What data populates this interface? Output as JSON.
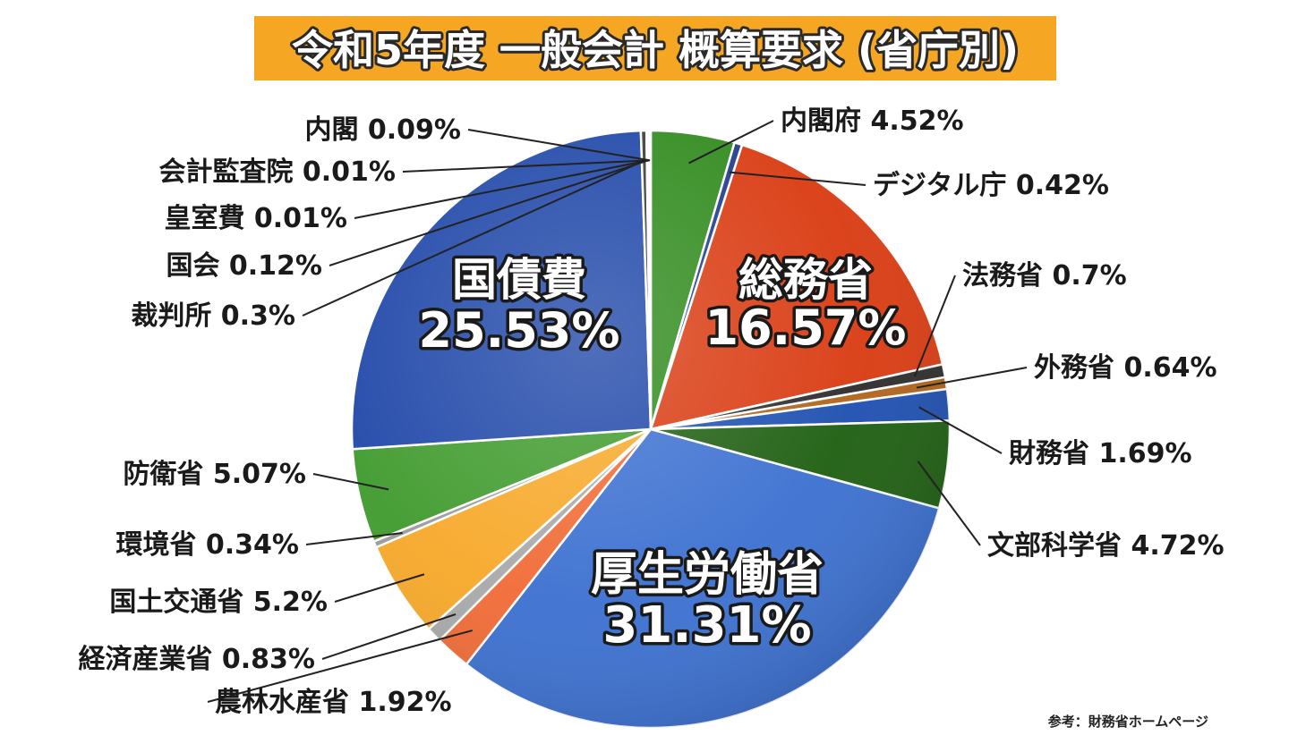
{
  "title": "令和5年度 一般会計 概算要求 (省庁別)",
  "source_note": "参考：財務省ホームページ",
  "chart_data": {
    "type": "pie",
    "title": "令和5年度 一般会計 概算要求 (省庁別)",
    "unit": "%",
    "slices": [
      {
        "label": "内閣府",
        "value": 4.52,
        "display": "内閣府 4.52%",
        "color": "#2f8a1c"
      },
      {
        "label": "デジタル庁",
        "value": 0.42,
        "display": "デジタル庁 0.42%",
        "color": "#1f3a8a"
      },
      {
        "label": "総務省",
        "value": 16.57,
        "display": "16.57%",
        "color": "#d93a10"
      },
      {
        "label": "法務省",
        "value": 0.7,
        "display": "法務省 0.7%",
        "color": "#2b2b2b"
      },
      {
        "label": "外務省",
        "value": 0.64,
        "display": "外務省 0.64%",
        "color": "#b0631a"
      },
      {
        "label": "財務省",
        "value": 1.69,
        "display": "財務省 1.69%",
        "color": "#1d4fb0"
      },
      {
        "label": "文部科学省",
        "value": 4.72,
        "display": "文部科学省 4.72%",
        "color": "#1d5e10"
      },
      {
        "label": "厚生労働省",
        "value": 31.31,
        "display": "31.31%",
        "color": "#3a6fd0"
      },
      {
        "label": "農林水産省",
        "value": 1.92,
        "display": "農林水産省 1.92%",
        "color": "#f06a35"
      },
      {
        "label": "経済産業省",
        "value": 0.83,
        "display": "経済産業省 0.83%",
        "color": "#a8a8a8"
      },
      {
        "label": "国土交通省",
        "value": 5.2,
        "display": "国土交通省 5.2%",
        "color": "#f7a828"
      },
      {
        "label": "環境省",
        "value": 0.34,
        "display": "環境省 0.34%",
        "color": "#9a9a9a"
      },
      {
        "label": "防衛省",
        "value": 5.07,
        "display": "防衛省 5.07%",
        "color": "#3f9a2c"
      },
      {
        "label": "国債費",
        "value": 25.53,
        "display": "25.53%",
        "color": "#1e46a8"
      },
      {
        "label": "裁判所",
        "value": 0.3,
        "display": "裁判所 0.3%",
        "color": "#3a3a3a"
      },
      {
        "label": "国会",
        "value": 0.12,
        "display": "国会 0.12%",
        "color": "#555555"
      },
      {
        "label": "皇室費",
        "value": 0.01,
        "display": "皇室費 0.01%",
        "color": "#777777"
      },
      {
        "label": "会計監査院",
        "value": 0.01,
        "display": "会計監査院 0.01%",
        "color": "#888888"
      },
      {
        "label": "内閣",
        "value": 0.09,
        "display": "内閣 0.09%",
        "color": "#666666"
      }
    ]
  }
}
